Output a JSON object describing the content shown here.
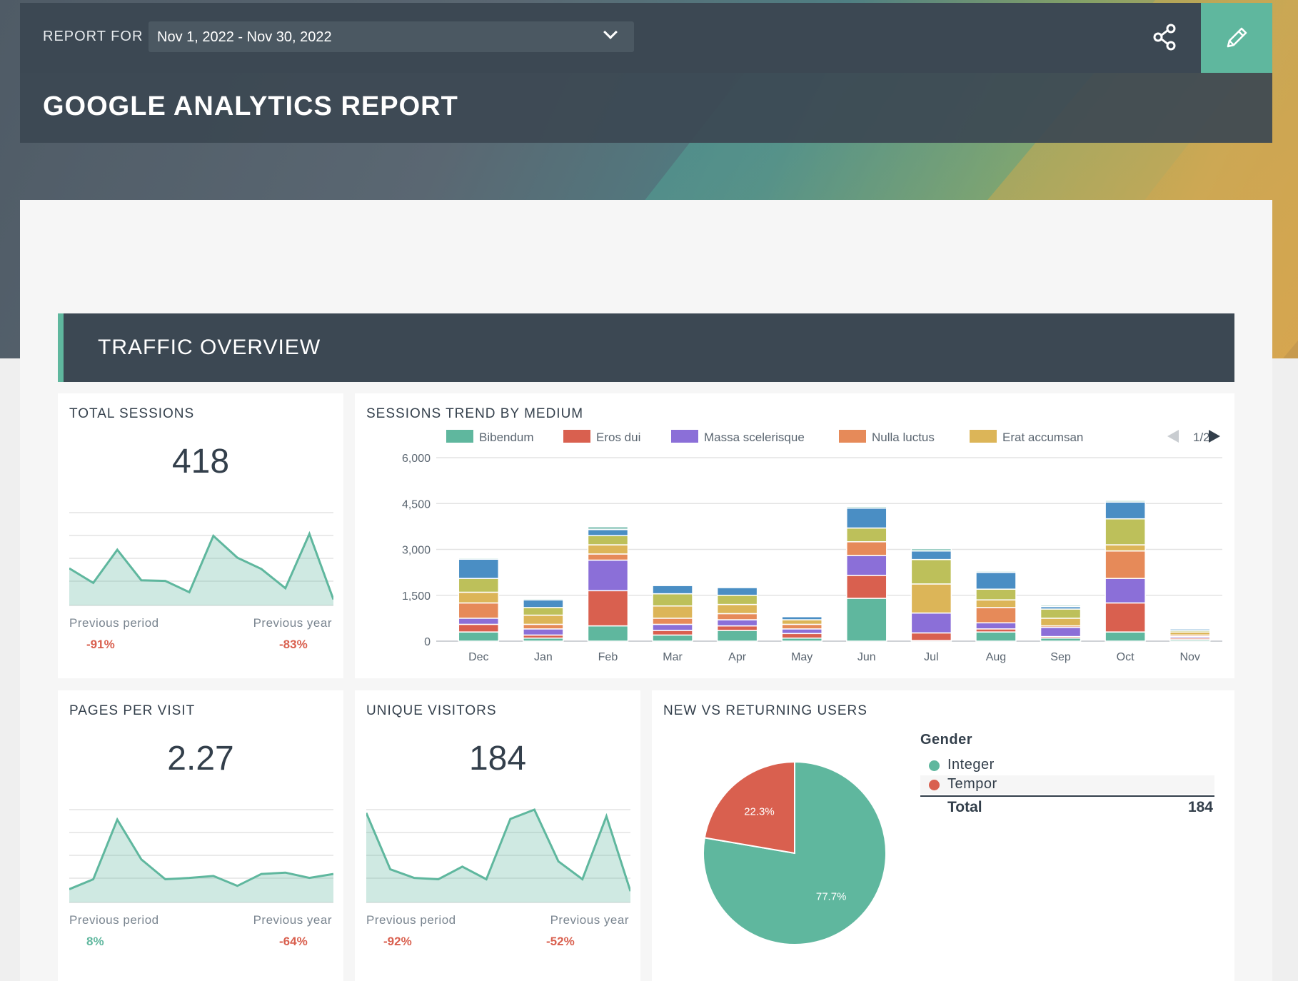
{
  "header": {
    "report_for_label": "REPORT FOR",
    "date_range": "Nov 1, 2022 - Nov 30, 2022",
    "title": "GOOGLE ANALYTICS REPORT"
  },
  "section": {
    "title": "TRAFFIC OVERVIEW"
  },
  "icons": {
    "share": "share-icon",
    "edit": "pencil-icon",
    "dropdown": "chevron-down-icon"
  },
  "colors": {
    "accent": "#5fb79e",
    "negative": "#d9604f",
    "dark_panel": "#3c4853",
    "series": [
      "#5fb79e",
      "#d9604f",
      "#8b6fd8",
      "#e68a59",
      "#dcb558",
      "#bdc05a",
      "#4a8ec4"
    ]
  },
  "total_sessions": {
    "title": "TOTAL SESSIONS",
    "value": "418",
    "prev_period_label": "Previous period",
    "prev_period_value": "-91%",
    "prev_year_label": "Previous year",
    "prev_year_value": "-83%",
    "sparkline": [
      56,
      34,
      84,
      38,
      37,
      20,
      105,
      72,
      55,
      26,
      108,
      9
    ]
  },
  "pages_per_visit": {
    "title": "PAGES PER VISIT",
    "value": "2.27",
    "prev_period_label": "Previous period",
    "prev_period_value": "8%",
    "prev_year_label": "Previous year",
    "prev_year_value": "-64%",
    "sparkline": [
      20,
      35,
      125,
      65,
      35,
      37,
      40,
      25,
      43,
      45,
      37,
      43
    ]
  },
  "unique_visitors": {
    "title": "UNIQUE VISITORS",
    "value": "184",
    "prev_period_label": "Previous period",
    "prev_period_value": "-92%",
    "prev_year_label": "Previous year",
    "prev_year_value": "-52%",
    "sparkline": [
      135,
      50,
      37,
      35,
      54,
      35,
      126,
      140,
      62,
      35,
      130,
      17
    ]
  },
  "sessions_trend": {
    "title": "SESSIONS TREND BY MEDIUM",
    "pager": "1/2"
  },
  "chart_data": {
    "type": "bar",
    "stacked": true,
    "categories": [
      "Dec",
      "Jan",
      "Feb",
      "Mar",
      "Apr",
      "May",
      "Jun",
      "Jul",
      "Aug",
      "Sep",
      "Oct",
      "Nov"
    ],
    "yticks": [
      "0",
      "1,500",
      "3,000",
      "4,500",
      "6,000"
    ],
    "ylim": [
      0,
      6000
    ],
    "grid": true,
    "legend_position": "top",
    "series": [
      {
        "name": "Bibendum",
        "values": [
          300,
          100,
          500,
          200,
          350,
          100,
          1400,
          20,
          300,
          100,
          300,
          50
        ]
      },
      {
        "name": "Eros dui",
        "values": [
          250,
          100,
          1150,
          150,
          150,
          150,
          750,
          250,
          100,
          50,
          950,
          50
        ]
      },
      {
        "name": "Massa scelerisque",
        "values": [
          200,
          200,
          1000,
          200,
          200,
          150,
          650,
          650,
          200,
          300,
          800,
          50
        ]
      },
      {
        "name": "Nulla luctus",
        "values": [
          500,
          150,
          200,
          200,
          200,
          150,
          450,
          0,
          500,
          50,
          900,
          50
        ]
      },
      {
        "name": "Erat accumsan",
        "values": [
          350,
          300,
          300,
          400,
          300,
          150,
          0,
          950,
          250,
          250,
          200,
          100
        ]
      },
      {
        "name": "",
        "values": [
          450,
          250,
          300,
          400,
          300,
          0,
          450,
          800,
          350,
          300,
          850,
          50
        ]
      },
      {
        "name": "",
        "values": [
          630,
          250,
          200,
          270,
          250,
          100,
          650,
          280,
          550,
          80,
          550,
          50
        ]
      },
      {
        "name": "",
        "values": [
          40,
          40,
          100,
          30,
          0,
          30,
          50,
          80,
          40,
          50,
          50,
          30
        ]
      }
    ]
  },
  "new_vs_returning": {
    "title": "NEW VS RETURNING USERS",
    "legend_title": "Gender",
    "total_label": "Total",
    "total_value": "184",
    "chart": {
      "type": "pie",
      "slices": [
        {
          "name": "Integer",
          "value": 77.7,
          "label": "77.7%"
        },
        {
          "name": "Tempor",
          "value": 22.3,
          "label": "22.3%"
        }
      ]
    }
  }
}
